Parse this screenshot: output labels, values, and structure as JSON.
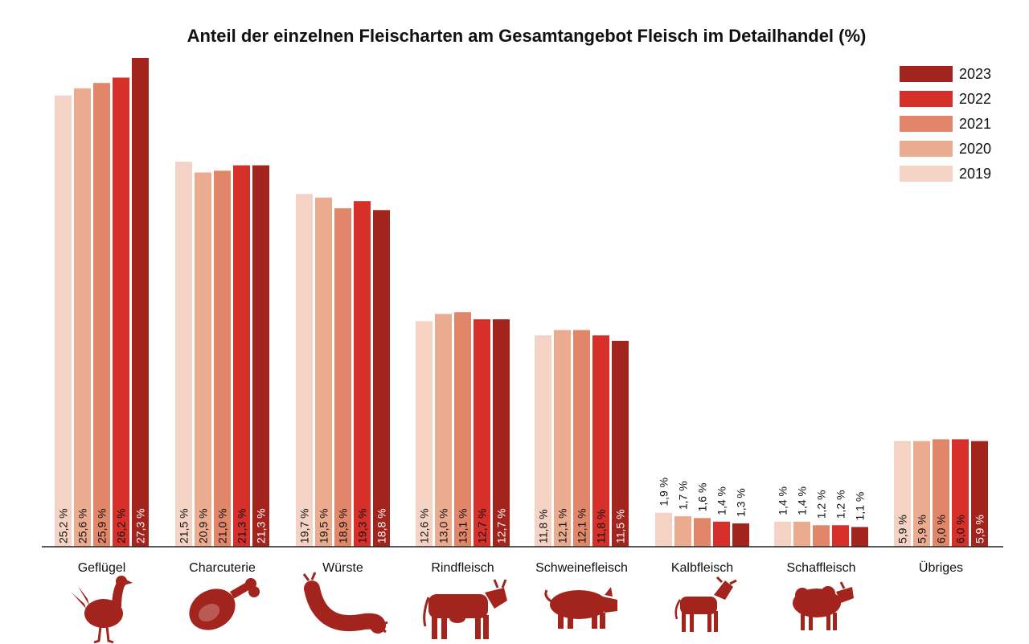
{
  "chart_data": {
    "type": "bar",
    "title": "Anteil der einzelnen Fleischarten am Gesamtangebot Fleisch im Detailhandel (%)",
    "xlabel": "",
    "ylabel": "",
    "ylim": [
      0,
      28
    ],
    "grid": false,
    "legend_position": "top-right",
    "categories": [
      "Geflügel",
      "Charcuterie",
      "Würste",
      "Rindfleisch",
      "Schweinefleisch",
      "Kalbfleisch",
      "Schaffleisch",
      "Übriges"
    ],
    "icons": [
      "chicken-icon",
      "ham-icon",
      "sausage-icon",
      "cow-icon",
      "pig-icon",
      "calf-icon",
      "sheep-icon",
      ""
    ],
    "legend_order": [
      "2023",
      "2022",
      "2021",
      "2020",
      "2019"
    ],
    "series": [
      {
        "name": "2019",
        "color": "#f4d3c4",
        "label_color": "#111111",
        "values": [
          25.2,
          21.5,
          19.7,
          12.6,
          11.8,
          1.9,
          1.4,
          5.9
        ],
        "labels": [
          "25,2 %",
          "21,5 %",
          "19,7 %",
          "12,6 %",
          "11,8 %",
          "1,9 %",
          "1,4 %",
          "5,9 %"
        ]
      },
      {
        "name": "2020",
        "color": "#eaab8e",
        "label_color": "#111111",
        "values": [
          25.6,
          20.9,
          19.5,
          13.0,
          12.1,
          1.7,
          1.4,
          5.9
        ],
        "labels": [
          "25,6 %",
          "20,9 %",
          "19,5 %",
          "13,0 %",
          "12,1 %",
          "1,7 %",
          "1,4 %",
          "5,9 %"
        ]
      },
      {
        "name": "2021",
        "color": "#e2866a",
        "label_color": "#111111",
        "values": [
          25.9,
          21.0,
          18.9,
          13.1,
          12.1,
          1.6,
          1.2,
          6.0
        ],
        "labels": [
          "25,9 %",
          "21,0 %",
          "18,9 %",
          "13,1 %",
          "12,1 %",
          "1,6 %",
          "1,2 %",
          "6,0 %"
        ]
      },
      {
        "name": "2022",
        "color": "#d7302a",
        "label_color": "#111111",
        "values": [
          26.2,
          21.3,
          19.3,
          12.7,
          11.8,
          1.4,
          1.2,
          6.0
        ],
        "labels": [
          "26,2 %",
          "21,3 %",
          "19,3 %",
          "12,7 %",
          "11,8 %",
          "1,4 %",
          "1,2 %",
          "6,0 %"
        ]
      },
      {
        "name": "2023",
        "color": "#a3231d",
        "label_color": "#ffffff",
        "values": [
          27.3,
          21.3,
          18.8,
          12.7,
          11.5,
          1.3,
          1.1,
          5.9
        ],
        "labels": [
          "27,3 %",
          "21,3 %",
          "18,8 %",
          "12,7 %",
          "11,5 %",
          "1,3 %",
          "1,1 %",
          "5,9 %"
        ]
      }
    ],
    "icon_color": "#a3231d"
  }
}
